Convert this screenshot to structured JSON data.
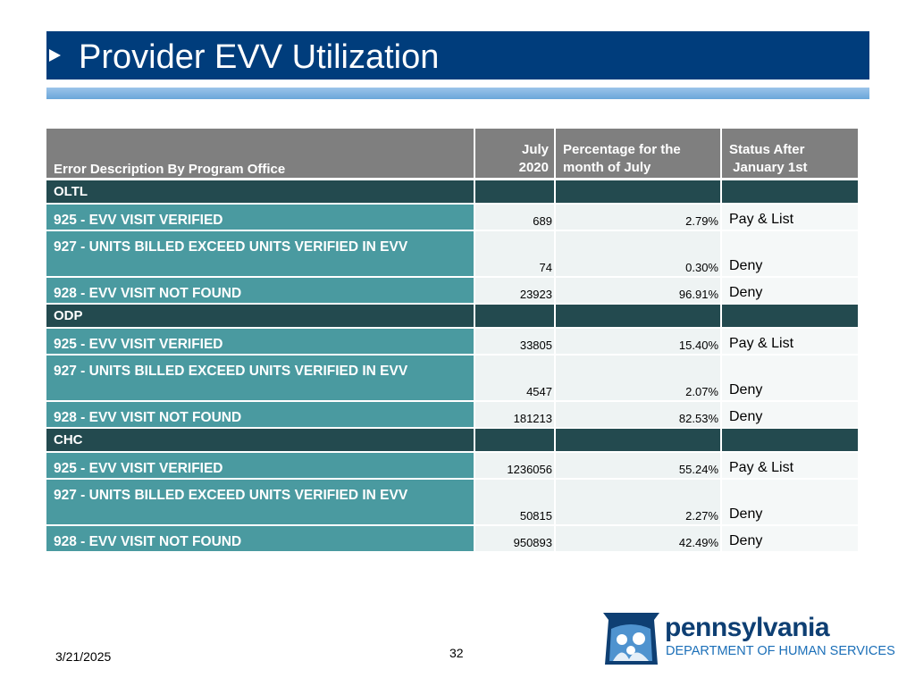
{
  "title": "Provider EVV Utilization",
  "table": {
    "headers": {
      "description": "Error Description By Program Office",
      "july_line1": "July",
      "july_line2": "2020",
      "percent_line1": "Percentage for the",
      "percent_line2": "month of July",
      "status_line1": "Status After",
      "status_line2": "January 1st"
    },
    "groups": [
      {
        "name": "OLTL",
        "rows": [
          {
            "description": "925 - EVV VISIT VERIFIED",
            "july": "689",
            "percent": "2.79%",
            "status": "Pay & List"
          },
          {
            "description": "927 - UNITS BILLED EXCEED UNITS VERIFIED IN EVV",
            "july": "74",
            "percent": "0.30%",
            "status": "Deny"
          },
          {
            "description": "928 - EVV VISIT NOT FOUND",
            "july": "23923",
            "percent": "96.91%",
            "status": "Deny"
          }
        ]
      },
      {
        "name": "ODP",
        "rows": [
          {
            "description": "925 - EVV VISIT VERIFIED",
            "july": "33805",
            "percent": "15.40%",
            "status": "Pay & List"
          },
          {
            "description": "927 - UNITS BILLED EXCEED UNITS VERIFIED IN EVV",
            "july": "4547",
            "percent": "2.07%",
            "status": "Deny"
          },
          {
            "description": "928 - EVV VISIT NOT FOUND",
            "july": "181213",
            "percent": "82.53%",
            "status": "Deny"
          }
        ]
      },
      {
        "name": "CHC",
        "rows": [
          {
            "description": "925 - EVV VISIT VERIFIED",
            "july": "1236056",
            "percent": "55.24%",
            "status": "Pay & List"
          },
          {
            "description": "927 - UNITS BILLED EXCEED UNITS VERIFIED IN EVV",
            "july": "50815",
            "percent": "2.27%",
            "status": "Deny"
          },
          {
            "description": "928 - EVV VISIT NOT FOUND",
            "july": "950893",
            "percent": "42.49%",
            "status": "Deny"
          }
        ]
      }
    ]
  },
  "footer": {
    "date": "3/21/2025",
    "page_number": "32",
    "logo_name": "pennsylvania",
    "logo_department": "DEPARTMENT OF HUMAN SERVICES"
  },
  "colors": {
    "title_bar": "#003d7c",
    "header_gray": "#7f7f7f",
    "group_dark_teal": "#234a4f",
    "description_teal": "#4a9aa0"
  }
}
